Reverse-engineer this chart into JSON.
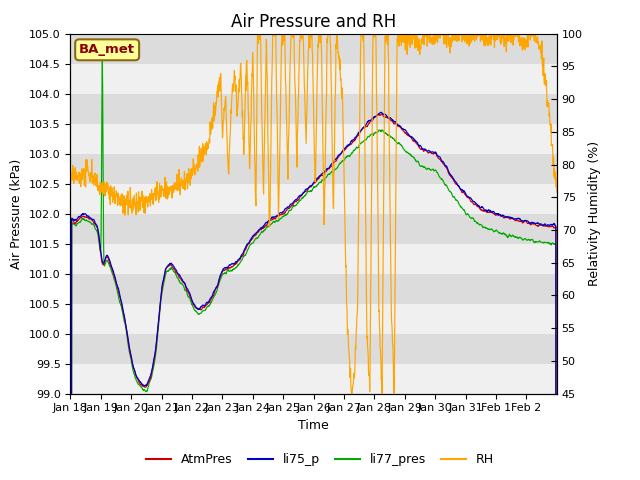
{
  "title": "Air Pressure and RH",
  "xlabel": "Time",
  "ylabel_left": "Air Pressure (kPa)",
  "ylabel_right": "Relativity Humidity (%)",
  "ylim_left": [
    99.0,
    105.0
  ],
  "ylim_right": [
    45,
    100
  ],
  "yticks_left": [
    99.0,
    99.5,
    100.0,
    100.5,
    101.0,
    101.5,
    102.0,
    102.5,
    103.0,
    103.5,
    104.0,
    104.5,
    105.0
  ],
  "yticks_right": [
    45,
    50,
    55,
    60,
    65,
    70,
    75,
    80,
    85,
    90,
    95,
    100
  ],
  "bg_color": "#e8e8e8",
  "band_color_light": "#f0f0f0",
  "band_color_dark": "#dcdcdc",
  "annotation_text": "BA_met",
  "annotation_bg": "#ffff99",
  "annotation_border": "#8b6914",
  "colors": {
    "AtmPres": "#cc0000",
    "li75_p": "#0000cc",
    "li77_pres": "#00aa00",
    "RH": "#ffa500"
  },
  "legend_labels": [
    "AtmPres",
    "li75_p",
    "li77_pres",
    "RH"
  ],
  "xtick_labels": [
    "Jan 18",
    "Jan 19",
    "Jan 20",
    "Jan 21",
    "Jan 22",
    "Jan 23",
    "Jan 24",
    "Jan 25",
    "Jan 26",
    "Jan 27",
    "Jan 28",
    "Jan 29",
    "Jan 30",
    "Jan 31",
    "Feb 1",
    "Feb 2"
  ],
  "title_fontsize": 12,
  "axis_fontsize": 9,
  "tick_fontsize": 8
}
